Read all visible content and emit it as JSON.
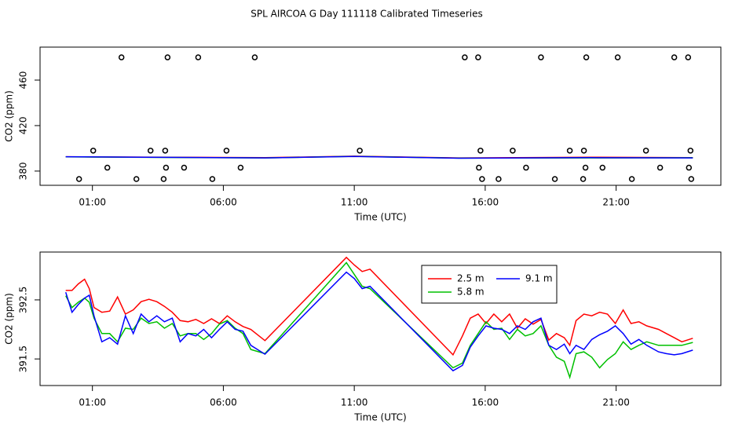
{
  "chart_data": [
    {
      "type": "line",
      "title": "SPL AIRCOA G  Day 111118  Calibrated Timeseries",
      "xlabel": "Time (UTC)",
      "ylabel": "CO2 (ppm)",
      "xlim": [
        -1,
        25
      ],
      "ylim": [
        367.5,
        489
      ],
      "xticks": [
        {
          "value": 1,
          "label": "01:00"
        },
        {
          "value": 6,
          "label": "06:00"
        },
        {
          "value": 11,
          "label": "11:00"
        },
        {
          "value": 16,
          "label": "16:00"
        },
        {
          "value": 21,
          "label": "21:00"
        }
      ],
      "yticks": [
        380,
        420,
        460
      ],
      "x": [
        -0.02,
        3,
        7.6,
        11,
        15,
        20,
        23.93
      ],
      "series": [
        {
          "color": "#ff0000",
          "values": [
            392.6,
            392.3,
            391.8,
            393.1,
            391.6,
            392.2,
            391.8
          ]
        },
        {
          "color": "#00c000",
          "values": [
            392.5,
            392.1,
            391.6,
            393.0,
            391.4,
            391.6,
            391.7
          ]
        },
        {
          "color": "#0000ff",
          "values": [
            392.6,
            392.2,
            391.6,
            392.9,
            391.3,
            391.8,
            391.6
          ]
        }
      ],
      "points": {
        "color": "#000000",
        "x": [
          2.11,
          3.87,
          5.04,
          7.2,
          15.22,
          15.73,
          18.13,
          19.86,
          21.06,
          23.22,
          23.75,
          1.03,
          3.22,
          3.78,
          6.12,
          11.21,
          15.82,
          17.05,
          19.23,
          19.77,
          22.14,
          23.84,
          1.57,
          3.81,
          4.5,
          6.66,
          15.76,
          17.56,
          19.83,
          20.48,
          22.68,
          23.78,
          0.49,
          2.68,
          3.72,
          5.58,
          15.88,
          16.51,
          18.66,
          19.74,
          21.6,
          23.87
        ],
        "values": [
          480,
          480,
          480,
          480,
          480,
          480,
          480,
          480,
          480,
          480,
          480,
          398,
          398,
          398,
          398,
          398,
          398,
          398,
          398,
          398,
          398,
          398,
          383,
          383,
          383,
          383,
          383,
          383,
          383,
          383,
          383,
          383,
          373,
          373,
          373,
          373,
          373,
          373,
          373,
          373,
          373,
          373
        ]
      }
    },
    {
      "type": "line",
      "xlabel": "Time (UTC)",
      "ylabel": "CO2 (ppm)",
      "xlim": [
        -1,
        25
      ],
      "ylim": [
        391.05,
        393.31
      ],
      "xticks": [
        {
          "value": 1,
          "label": "01:00"
        },
        {
          "value": 6,
          "label": "06:00"
        },
        {
          "value": 11,
          "label": "11:00"
        },
        {
          "value": 16,
          "label": "16:00"
        },
        {
          "value": 21,
          "label": "21:00"
        }
      ],
      "yticks": [
        391.5,
        392.5
      ],
      "legend": "top-center",
      "x": [
        -0.02,
        0.22,
        0.46,
        0.7,
        0.88,
        1.06,
        1.36,
        1.66,
        1.96,
        2.26,
        2.56,
        2.86,
        3.16,
        3.46,
        3.75,
        4.05,
        4.35,
        4.65,
        4.95,
        5.25,
        5.55,
        5.85,
        6.15,
        6.45,
        6.75,
        7.05,
        7.59,
        10.7,
        11.0,
        11.3,
        11.6,
        14.77,
        15.13,
        15.43,
        15.73,
        16.03,
        16.33,
        16.63,
        16.93,
        17.23,
        17.53,
        17.83,
        18.13,
        18.43,
        18.72,
        19.02,
        19.23,
        19.47,
        19.77,
        20.07,
        20.37,
        20.67,
        20.97,
        21.27,
        21.57,
        21.87,
        22.17,
        22.62,
        22.92,
        23.22,
        23.51,
        23.93
      ],
      "series": [
        {
          "name": "2.5 m",
          "color": "#ff0000",
          "values": [
            392.66,
            392.66,
            392.77,
            392.85,
            392.69,
            392.37,
            392.29,
            392.31,
            392.55,
            392.26,
            392.33,
            392.47,
            392.51,
            392.47,
            392.39,
            392.29,
            392.15,
            392.13,
            392.17,
            392.1,
            392.18,
            392.1,
            392.23,
            392.13,
            392.05,
            392.0,
            391.81,
            393.22,
            393.09,
            392.98,
            393.02,
            391.57,
            391.89,
            392.19,
            392.26,
            392.1,
            392.26,
            392.13,
            392.26,
            392.02,
            392.18,
            392.09,
            392.17,
            391.82,
            391.93,
            391.86,
            391.73,
            392.15,
            392.26,
            392.23,
            392.29,
            392.26,
            392.1,
            392.33,
            392.1,
            392.13,
            392.06,
            392.0,
            391.93,
            391.86,
            391.79,
            391.85
          ]
        },
        {
          "name": "5.8 m",
          "color": "#00c000",
          "values": [
            392.57,
            392.37,
            392.46,
            392.53,
            392.46,
            392.19,
            391.93,
            391.93,
            391.79,
            392.02,
            392.0,
            392.19,
            392.1,
            392.13,
            392.02,
            392.1,
            391.89,
            391.93,
            391.93,
            391.83,
            391.93,
            392.09,
            392.15,
            392.02,
            391.93,
            391.66,
            391.59,
            393.13,
            392.93,
            392.73,
            392.69,
            391.35,
            391.43,
            391.73,
            391.93,
            392.13,
            392.0,
            392.02,
            391.83,
            392.0,
            391.89,
            391.93,
            392.06,
            391.73,
            391.53,
            391.46,
            391.19,
            391.59,
            391.62,
            391.53,
            391.35,
            391.49,
            391.59,
            391.79,
            391.66,
            391.73,
            391.79,
            391.73,
            391.73,
            391.73,
            391.73,
            391.78
          ]
        },
        {
          "name": "9.1 m",
          "color": "#0000ff",
          "values": [
            392.63,
            392.29,
            392.42,
            392.53,
            392.58,
            392.23,
            391.79,
            391.86,
            391.75,
            392.23,
            391.93,
            392.26,
            392.13,
            392.23,
            392.13,
            392.19,
            391.79,
            391.93,
            391.89,
            392.0,
            391.86,
            392.0,
            392.13,
            392.0,
            391.97,
            391.73,
            391.58,
            392.97,
            392.86,
            392.69,
            392.73,
            391.3,
            391.39,
            391.7,
            391.89,
            392.06,
            392.02,
            392.0,
            391.93,
            392.06,
            392.0,
            392.13,
            392.19,
            391.73,
            391.66,
            391.75,
            391.59,
            391.73,
            391.66,
            391.83,
            391.91,
            391.97,
            392.06,
            391.93,
            391.75,
            391.83,
            391.73,
            391.62,
            391.59,
            391.57,
            391.59,
            391.65
          ]
        }
      ]
    }
  ]
}
